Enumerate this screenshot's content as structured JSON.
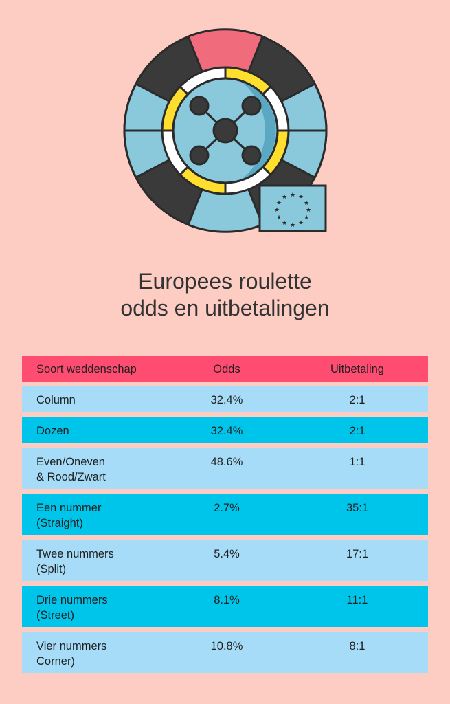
{
  "title": {
    "line1": "Europees roulette",
    "line2": "odds en uitbetalingen"
  },
  "colors": {
    "background": "#fdccc3",
    "header": "#ff4d72",
    "row_light": "#a6dcf8",
    "row_dark": "#00c5ea",
    "wheel_dark": "#3a3a3a",
    "wheel_blue": "#8ac8dc",
    "wheel_red": "#f06b7c",
    "wheel_yellow": "#ffde2e"
  },
  "illustration": {
    "icon": "roulette-wheel-icon",
    "flag_icon": "eu-flag-icon"
  },
  "table": {
    "headers": [
      "Soort weddenschap",
      "Odds",
      "Uitbetaling"
    ],
    "rows": [
      {
        "bet_line1": "Column",
        "bet_line2": "",
        "odds": "32.4%",
        "payout": "2:1"
      },
      {
        "bet_line1": "Dozen",
        "bet_line2": "",
        "odds": "32.4%",
        "payout": "2:1"
      },
      {
        "bet_line1": "Even/Oneven",
        "bet_line2": "& Rood/Zwart",
        "odds": "48.6%",
        "payout": "1:1"
      },
      {
        "bet_line1": "Een nummer",
        "bet_line2": "(Straight)",
        "odds": "2.7%",
        "payout": "35:1"
      },
      {
        "bet_line1": "Twee nummers",
        "bet_line2": "(Split)",
        "odds": "5.4%",
        "payout": "17:1"
      },
      {
        "bet_line1": "Drie nummers",
        "bet_line2": "(Street)",
        "odds": "8.1%",
        "payout": "11:1"
      },
      {
        "bet_line1": "Vier nummers",
        "bet_line2": "Corner)",
        "odds": "10.8%",
        "payout": "8:1"
      }
    ]
  }
}
